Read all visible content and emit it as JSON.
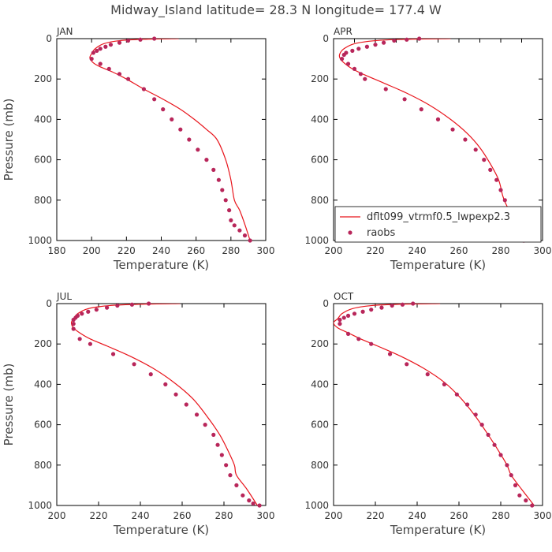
{
  "figure_title": "Midway_Island   latitude= 28.3 N longitude= 177.4 W",
  "colors": {
    "model": "#e8141b",
    "obs": "#b8265a",
    "frame": "#000000",
    "text": "#333333"
  },
  "chart_data": [
    {
      "type": "line",
      "panel": "JAN",
      "xlabel": "Temperature (K)",
      "ylabel": "Pressure (mb)",
      "xlim": [
        180,
        300
      ],
      "ylim": [
        1000,
        0
      ],
      "xticks": [
        180,
        200,
        220,
        240,
        260,
        280,
        300
      ],
      "yticks": [
        0,
        200,
        400,
        600,
        800,
        1000
      ],
      "series": [
        {
          "kind": "line",
          "x": [
            250,
            230,
            216,
            207,
            202,
            200,
            199,
            201,
            205,
            212,
            220,
            230,
            241,
            251,
            259,
            266,
            272,
            277,
            280,
            282,
            285,
            288,
            291
          ],
          "y": [
            0,
            3,
            10,
            25,
            50,
            75,
            95,
            120,
            140,
            165,
            200,
            250,
            300,
            350,
            400,
            450,
            500,
            600,
            700,
            800,
            850,
            920,
            1000
          ]
        },
        {
          "kind": "scatter",
          "x": [
            236,
            228,
            221,
            216,
            211,
            208,
            205,
            203,
            201,
            200,
            205,
            210,
            216,
            221,
            230,
            236,
            241,
            246,
            251,
            256,
            261,
            266,
            270,
            273,
            275,
            277,
            279,
            280,
            282,
            285,
            288,
            291
          ],
          "y": [
            0,
            5,
            10,
            20,
            30,
            40,
            50,
            60,
            70,
            100,
            125,
            150,
            175,
            200,
            250,
            300,
            350,
            400,
            450,
            500,
            550,
            600,
            650,
            700,
            750,
            800,
            850,
            900,
            925,
            950,
            975,
            1000
          ]
        }
      ]
    },
    {
      "type": "line",
      "panel": "APR",
      "xlabel": "Temperature (K)",
      "ylabel": "",
      "xlim": [
        200,
        300
      ],
      "ylim": [
        1000,
        0
      ],
      "xticks": [
        200,
        210,
        220,
        230,
        240,
        250,
        260,
        270,
        280,
        290,
        300
      ],
      "yticks": [
        0,
        200,
        400,
        600,
        800,
        1000
      ],
      "legend": {
        "loc": "bottom-right",
        "entries": [
          "dflt099_vtrmf0.5_lwpexp2.3",
          "raobs"
        ]
      },
      "series": [
        {
          "name": "dflt099_vtrmf0.5_lwpexp2.3",
          "kind": "line",
          "x": [
            256,
            235,
            220,
            210,
            205,
            203,
            203,
            205,
            209,
            215,
            224,
            235,
            246,
            256,
            264,
            270,
            275,
            279,
            281,
            283,
            287,
            291
          ],
          "y": [
            0,
            3,
            10,
            25,
            50,
            75,
            95,
            120,
            150,
            180,
            220,
            270,
            330,
            400,
            470,
            540,
            620,
            700,
            780,
            830,
            900,
            1000
          ]
        },
        {
          "name": "raobs",
          "kind": "scatter",
          "x": [
            241,
            235,
            229,
            224,
            220,
            216,
            212,
            209,
            206,
            205,
            204,
            207,
            210,
            213,
            215,
            225,
            234,
            242,
            250,
            257,
            263,
            268,
            272,
            275,
            278,
            280,
            282,
            283,
            284,
            285,
            288,
            291
          ],
          "y": [
            0,
            5,
            10,
            20,
            30,
            40,
            50,
            60,
            70,
            80,
            100,
            125,
            150,
            175,
            200,
            250,
            300,
            350,
            400,
            450,
            500,
            550,
            600,
            650,
            700,
            750,
            800,
            850,
            900,
            925,
            950,
            1000
          ]
        }
      ]
    },
    {
      "type": "line",
      "panel": "JUL",
      "xlabel": "Temperature (K)",
      "ylabel": "Pressure (mb)",
      "xlim": [
        200,
        300
      ],
      "ylim": [
        1000,
        0
      ],
      "xticks": [
        200,
        220,
        240,
        260,
        280,
        300
      ],
      "yticks": [
        0,
        200,
        400,
        600,
        800,
        1000
      ],
      "series": [
        {
          "kind": "line",
          "x": [
            259,
            240,
            225,
            215,
            210,
            208,
            207,
            208,
            211,
            216,
            224,
            235,
            246,
            256,
            265,
            272,
            278,
            282,
            285,
            286,
            291,
            296
          ],
          "y": [
            0,
            3,
            10,
            25,
            50,
            75,
            95,
            120,
            145,
            175,
            210,
            260,
            320,
            390,
            470,
            560,
            650,
            730,
            800,
            850,
            920,
            1000
          ]
        },
        {
          "kind": "scatter",
          "x": [
            244,
            236,
            229,
            224,
            219,
            215,
            212,
            210,
            209,
            208,
            208,
            208,
            211,
            216,
            227,
            237,
            245,
            252,
            257,
            262,
            267,
            271,
            275,
            277,
            279,
            281,
            283,
            286,
            289,
            292,
            294,
            297
          ],
          "y": [
            0,
            5,
            10,
            20,
            30,
            40,
            50,
            60,
            70,
            80,
            100,
            125,
            175,
            200,
            250,
            300,
            350,
            400,
            450,
            500,
            550,
            600,
            650,
            700,
            750,
            800,
            850,
            900,
            950,
            975,
            990,
            1000
          ]
        }
      ]
    },
    {
      "type": "line",
      "panel": "OCT",
      "xlabel": "Temperature (K)",
      "ylabel": "",
      "xlim": [
        200,
        300
      ],
      "ylim": [
        1000,
        0
      ],
      "xticks": [
        200,
        220,
        240,
        260,
        280,
        300
      ],
      "yticks": [
        0,
        200,
        400,
        600,
        800,
        1000
      ],
      "series": [
        {
          "kind": "line",
          "x": [
            251,
            232,
            218,
            209,
            204,
            202,
            200,
            202,
            207,
            213,
            221,
            232,
            243,
            253,
            261,
            268,
            274,
            279,
            283,
            285,
            290,
            296
          ],
          "y": [
            0,
            3,
            10,
            25,
            50,
            75,
            95,
            120,
            145,
            175,
            210,
            260,
            320,
            390,
            470,
            560,
            650,
            730,
            800,
            850,
            920,
            1000
          ]
        },
        {
          "kind": "scatter",
          "x": [
            238,
            233,
            228,
            223,
            218,
            214,
            210,
            207,
            205,
            203,
            203,
            207,
            212,
            218,
            227,
            235,
            245,
            253,
            259,
            264,
            268,
            271,
            274,
            277,
            280,
            283,
            285,
            287,
            289,
            292,
            295
          ],
          "y": [
            0,
            5,
            10,
            20,
            30,
            40,
            50,
            60,
            70,
            80,
            100,
            150,
            175,
            200,
            250,
            300,
            350,
            400,
            450,
            500,
            550,
            600,
            650,
            700,
            750,
            800,
            850,
            900,
            950,
            975,
            1000
          ]
        }
      ]
    }
  ]
}
